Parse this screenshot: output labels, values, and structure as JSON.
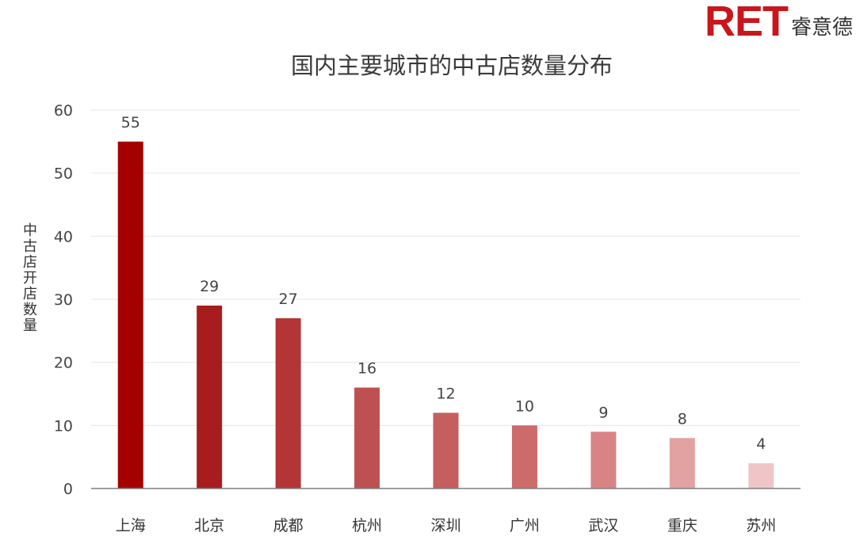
{
  "logo": {
    "mark": "RET",
    "name": "睿意德"
  },
  "chart_data": {
    "type": "bar",
    "title": "国内主要城市的中古店数量分布",
    "xlabel": "",
    "ylabel": "中古店开店数量",
    "ylim": [
      0,
      60
    ],
    "yticks": [
      0,
      10,
      20,
      30,
      40,
      50,
      60
    ],
    "grid": true,
    "categories": [
      "上海",
      "北京",
      "成都",
      "杭州",
      "深圳",
      "广州",
      "武汉",
      "重庆",
      "苏州"
    ],
    "values": [
      55,
      29,
      27,
      16,
      12,
      10,
      9,
      8,
      4
    ],
    "colors": [
      "#a50000",
      "#a71d1d",
      "#b33535",
      "#bd5152",
      "#c45e5f",
      "#cc6b6b",
      "#d88487",
      "#e3a2a2",
      "#f0c5c8"
    ]
  }
}
